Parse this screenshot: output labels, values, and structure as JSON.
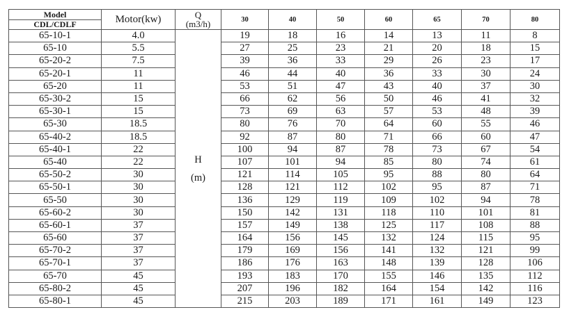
{
  "header": {
    "model": "Model",
    "series": "CDL/CDLF",
    "motor": "Motor(kw)",
    "q": "Q",
    "q_unit": "(m3/h)",
    "flows": [
      "30",
      "40",
      "50",
      "60",
      "65",
      "70",
      "80"
    ]
  },
  "head_label": "H",
  "head_unit": "(m)",
  "rows": [
    {
      "model": "65-10-1",
      "motor": "4.0",
      "h": [
        "19",
        "18",
        "16",
        "14",
        "13",
        "11",
        "8"
      ]
    },
    {
      "model": "65-10",
      "motor": "5.5",
      "h": [
        "27",
        "25",
        "23",
        "21",
        "20",
        "18",
        "15"
      ]
    },
    {
      "model": "65-20-2",
      "motor": "7.5",
      "h": [
        "39",
        "36",
        "33",
        "29",
        "26",
        "23",
        "17"
      ]
    },
    {
      "model": "65-20-1",
      "motor": "11",
      "h": [
        "46",
        "44",
        "40",
        "36",
        "33",
        "30",
        "24"
      ]
    },
    {
      "model": "65-20",
      "motor": "11",
      "h": [
        "53",
        "51",
        "47",
        "43",
        "40",
        "37",
        "30"
      ]
    },
    {
      "model": "65-30-2",
      "motor": "15",
      "h": [
        "66",
        "62",
        "56",
        "50",
        "46",
        "41",
        "32"
      ]
    },
    {
      "model": "65-30-1",
      "motor": "15",
      "h": [
        "73",
        "69",
        "63",
        "57",
        "53",
        "48",
        "39"
      ]
    },
    {
      "model": "65-30",
      "motor": "18.5",
      "h": [
        "80",
        "76",
        "70",
        "64",
        "60",
        "55",
        "46"
      ]
    },
    {
      "model": "65-40-2",
      "motor": "18.5",
      "h": [
        "92",
        "87",
        "80",
        "71",
        "66",
        "60",
        "47"
      ]
    },
    {
      "model": "65-40-1",
      "motor": "22",
      "h": [
        "100",
        "94",
        "87",
        "78",
        "73",
        "67",
        "54"
      ]
    },
    {
      "model": "65-40",
      "motor": "22",
      "h": [
        "107",
        "101",
        "94",
        "85",
        "80",
        "74",
        "61"
      ]
    },
    {
      "model": "65-50-2",
      "motor": "30",
      "h": [
        "121",
        "114",
        "105",
        "95",
        "88",
        "80",
        "64"
      ]
    },
    {
      "model": "65-50-1",
      "motor": "30",
      "h": [
        "128",
        "121",
        "112",
        "102",
        "95",
        "87",
        "71"
      ]
    },
    {
      "model": "65-50",
      "motor": "30",
      "h": [
        "136",
        "129",
        "119",
        "109",
        "102",
        "94",
        "78"
      ]
    },
    {
      "model": "65-60-2",
      "motor": "30",
      "h": [
        "150",
        "142",
        "131",
        "118",
        "110",
        "101",
        "81"
      ]
    },
    {
      "model": "65-60-1",
      "motor": "37",
      "h": [
        "157",
        "149",
        "138",
        "125",
        "117",
        "108",
        "88"
      ]
    },
    {
      "model": "65-60",
      "motor": "37",
      "h": [
        "164",
        "156",
        "145",
        "132",
        "124",
        "115",
        "95"
      ]
    },
    {
      "model": "65-70-2",
      "motor": "37",
      "h": [
        "179",
        "169",
        "156",
        "141",
        "132",
        "121",
        "99"
      ]
    },
    {
      "model": "65-70-1",
      "motor": "37",
      "h": [
        "186",
        "176",
        "163",
        "148",
        "139",
        "128",
        "106"
      ]
    },
    {
      "model": "65-70",
      "motor": "45",
      "h": [
        "193",
        "183",
        "170",
        "155",
        "146",
        "135",
        "112"
      ]
    },
    {
      "model": "65-80-2",
      "motor": "45",
      "h": [
        "207",
        "196",
        "182",
        "164",
        "154",
        "142",
        "116"
      ]
    },
    {
      "model": "65-80-1",
      "motor": "45",
      "h": [
        "215",
        "203",
        "189",
        "171",
        "161",
        "149",
        "123"
      ]
    }
  ]
}
